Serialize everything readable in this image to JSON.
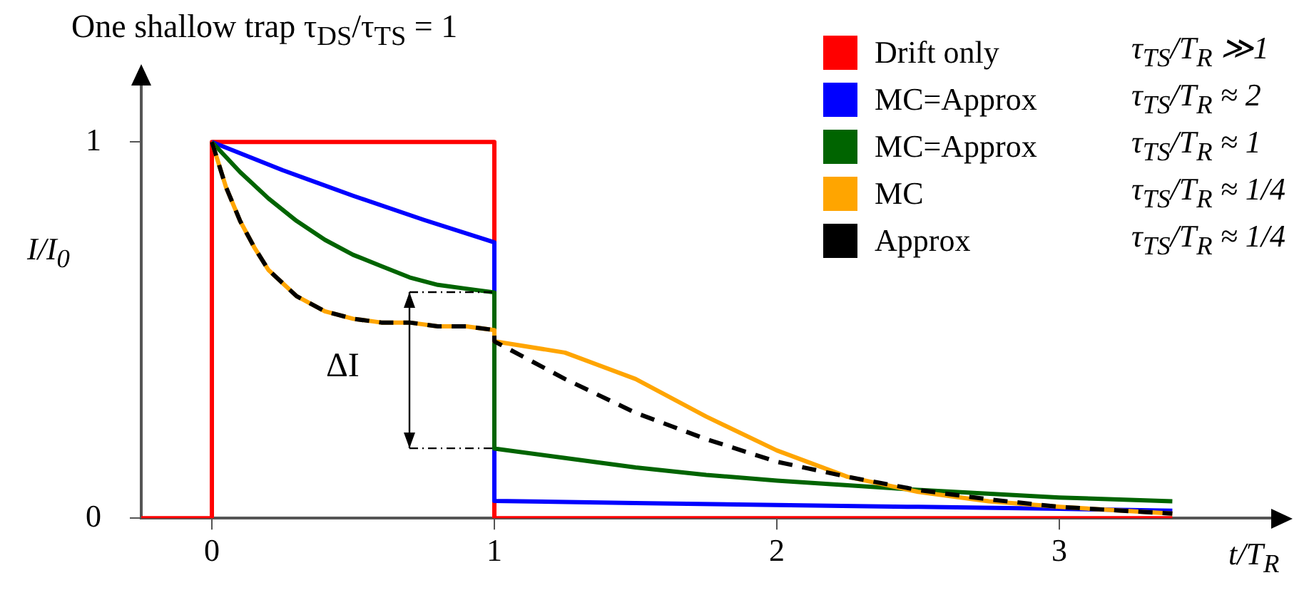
{
  "chart_data": {
    "type": "line",
    "title": "One shallow trap  τ$_{DS}$/τ$_{TS}$ = 1",
    "xlabel": "t/T$_{R}$",
    "ylabel": "I/I$_{0}$",
    "xlim": [
      -0.25,
      3.75
    ],
    "xticks": [
      0,
      1,
      2,
      3
    ],
    "ylim": [
      0,
      1.15
    ],
    "yticks": [
      0,
      1
    ],
    "grid": false,
    "legend": "top right",
    "marker": "none",
    "annotations": [
      "ΔI",
      "τ$_{TS}$/T$_{R}$ ≫1",
      "τ$_{TS}$/T$_{R}$ ≈ 2",
      "τ$_{TS}$/T$_{R}$ ≈ 1",
      "τ$_{TS}$/T$_{R}$ ≈ 1/4",
      "τ$_{TS}$/T$_{R}$ ≈ 1/4"
    ],
    "series": [
      {
        "name": "Drift only",
        "color": "#ff0000",
        "x": [
          -0.25,
          0,
          0,
          1,
          1,
          3.4
        ],
        "values": [
          0,
          0,
          1,
          1,
          0,
          0
        ]
      },
      {
        "name": "MC=Approx",
        "color": "#0000ff",
        "x": [
          0,
          0.25,
          0.5,
          0.75,
          1,
          1,
          1.5,
          2,
          2.5,
          3,
          3.4
        ],
        "values": [
          1,
          0.925,
          0.857,
          0.793,
          0.733,
          0.046,
          0.04,
          0.035,
          0.03,
          0.025,
          0.02
        ]
      },
      {
        "name": "MC=Approx",
        "color": "#006400",
        "x": [
          0,
          0.1,
          0.2,
          0.3,
          0.4,
          0.5,
          0.6,
          0.7,
          0.8,
          0.9,
          1,
          1,
          1.25,
          1.5,
          1.75,
          2,
          2.5,
          3,
          3.4
        ],
        "values": [
          1,
          0.92,
          0.85,
          0.79,
          0.74,
          0.7,
          0.67,
          0.64,
          0.62,
          0.61,
          0.6,
          0.185,
          0.16,
          0.135,
          0.115,
          0.1,
          0.075,
          0.055,
          0.045
        ]
      },
      {
        "name": "MC",
        "color": "#ffa500",
        "x": [
          0,
          0.05,
          0.1,
          0.15,
          0.2,
          0.3,
          0.4,
          0.5,
          0.6,
          0.7,
          0.8,
          0.9,
          1,
          1,
          1.25,
          1.5,
          1.75,
          2,
          2.25,
          2.5,
          2.75,
          3,
          3.4
        ],
        "values": [
          1,
          0.88,
          0.79,
          0.72,
          0.66,
          0.59,
          0.55,
          0.53,
          0.52,
          0.52,
          0.51,
          0.51,
          0.5,
          0.47,
          0.44,
          0.37,
          0.27,
          0.18,
          0.11,
          0.07,
          0.045,
          0.03,
          0.012
        ]
      },
      {
        "name": "Approx",
        "color": "#000000",
        "line_style": "dashed",
        "x": [
          0,
          0.05,
          0.1,
          0.15,
          0.2,
          0.3,
          0.4,
          0.5,
          0.6,
          0.7,
          0.8,
          0.9,
          1,
          1,
          1.25,
          1.5,
          1.75,
          2,
          2.25,
          2.5,
          2.75,
          3,
          3.4
        ],
        "values": [
          1,
          0.88,
          0.79,
          0.72,
          0.66,
          0.59,
          0.55,
          0.53,
          0.52,
          0.52,
          0.51,
          0.51,
          0.5,
          0.47,
          0.37,
          0.28,
          0.21,
          0.15,
          0.11,
          0.075,
          0.05,
          0.03,
          0.012
        ]
      }
    ]
  }
}
